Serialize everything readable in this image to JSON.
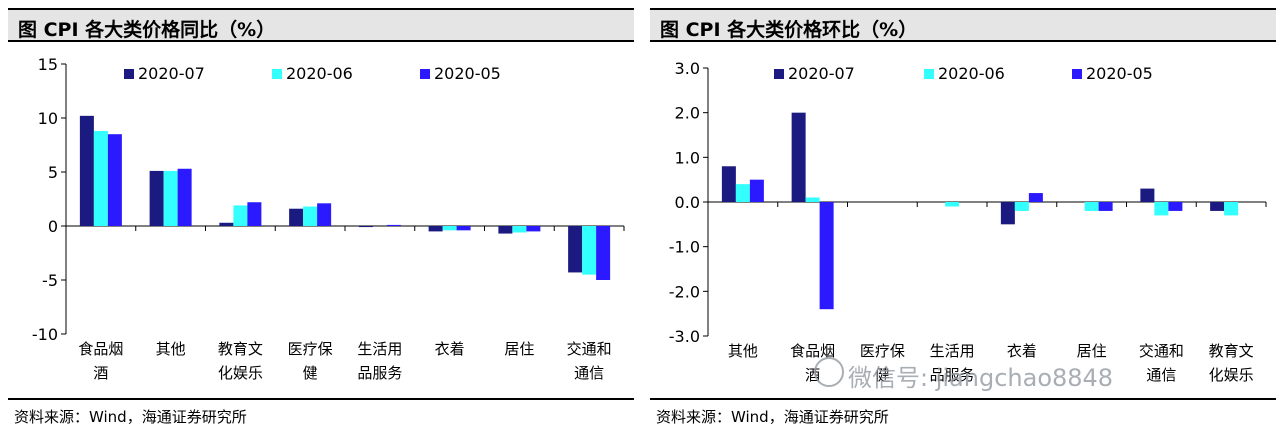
{
  "left_panel": {
    "title": "图  CPI 各大类价格同比（%）",
    "source": "资料来源：Wind，海通证券研究所"
  },
  "right_panel": {
    "title": "图  CPI 各大类价格环比（%）",
    "source": "资料来源：Wind，海通证券研究所"
  },
  "watermark": {
    "text": "微信号: jiangchao8848",
    "icon": "wechat-icon"
  },
  "chart_data": [
    {
      "type": "bar",
      "title": "图 CPI 各大类价格同比（%）",
      "categories": [
        [
          "食品烟",
          "酒"
        ],
        [
          "其他"
        ],
        [
          "教育文",
          "化娱乐"
        ],
        [
          "医疗保",
          "健"
        ],
        [
          "生活用",
          "品服务"
        ],
        [
          "衣着"
        ],
        [
          "居住"
        ],
        [
          "交通和",
          "通信"
        ]
      ],
      "series": [
        {
          "name": "2020-07",
          "color": "#1a1a80",
          "values": [
            10.2,
            5.1,
            0.3,
            1.6,
            -0.1,
            -0.5,
            -0.7,
            -4.3
          ]
        },
        {
          "name": "2020-06",
          "color": "#33ffff",
          "values": [
            8.8,
            5.1,
            1.9,
            1.8,
            0.0,
            -0.4,
            -0.6,
            -4.5
          ]
        },
        {
          "name": "2020-05",
          "color": "#2b1aff",
          "values": [
            8.5,
            5.3,
            2.2,
            2.1,
            0.1,
            -0.4,
            -0.5,
            -5.0
          ]
        }
      ],
      "ylim": [
        -10,
        15
      ],
      "yticks": [
        "15",
        "10",
        "5",
        "0",
        "-5",
        "-10"
      ],
      "ytick_values": [
        15,
        10,
        5,
        0,
        -5,
        -10
      ],
      "legend": "top",
      "grid": false
    },
    {
      "type": "bar",
      "title": "图 CPI 各大类价格环比（%）",
      "categories": [
        [
          "其他"
        ],
        [
          "食品烟",
          "酒"
        ],
        [
          "医疗保",
          "健"
        ],
        [
          "生活用",
          "品服务"
        ],
        [
          "衣着"
        ],
        [
          "居住"
        ],
        [
          "交通和",
          "通信"
        ],
        [
          "教育文",
          "化娱乐"
        ]
      ],
      "series": [
        {
          "name": "2020-07",
          "color": "#1a1a80",
          "values": [
            0.8,
            2.0,
            0.0,
            0.0,
            -0.5,
            0.0,
            0.3,
            -0.2
          ]
        },
        {
          "name": "2020-06",
          "color": "#33ffff",
          "values": [
            0.4,
            0.1,
            0.0,
            -0.1,
            -0.2,
            -0.2,
            -0.3,
            -0.3
          ]
        },
        {
          "name": "2020-05",
          "color": "#2b1aff",
          "values": [
            0.5,
            -2.4,
            0.0,
            0.0,
            0.2,
            -0.2,
            -0.2,
            0.0
          ]
        }
      ],
      "ylim": [
        -3,
        3
      ],
      "yticks": [
        "3.0",
        "2.0",
        "1.0",
        "0.0",
        "-1.0",
        "-2.0",
        "-3.0"
      ],
      "ytick_values": [
        3,
        2,
        1,
        0,
        -1,
        -2,
        -3
      ],
      "legend": "top",
      "grid": false
    }
  ]
}
